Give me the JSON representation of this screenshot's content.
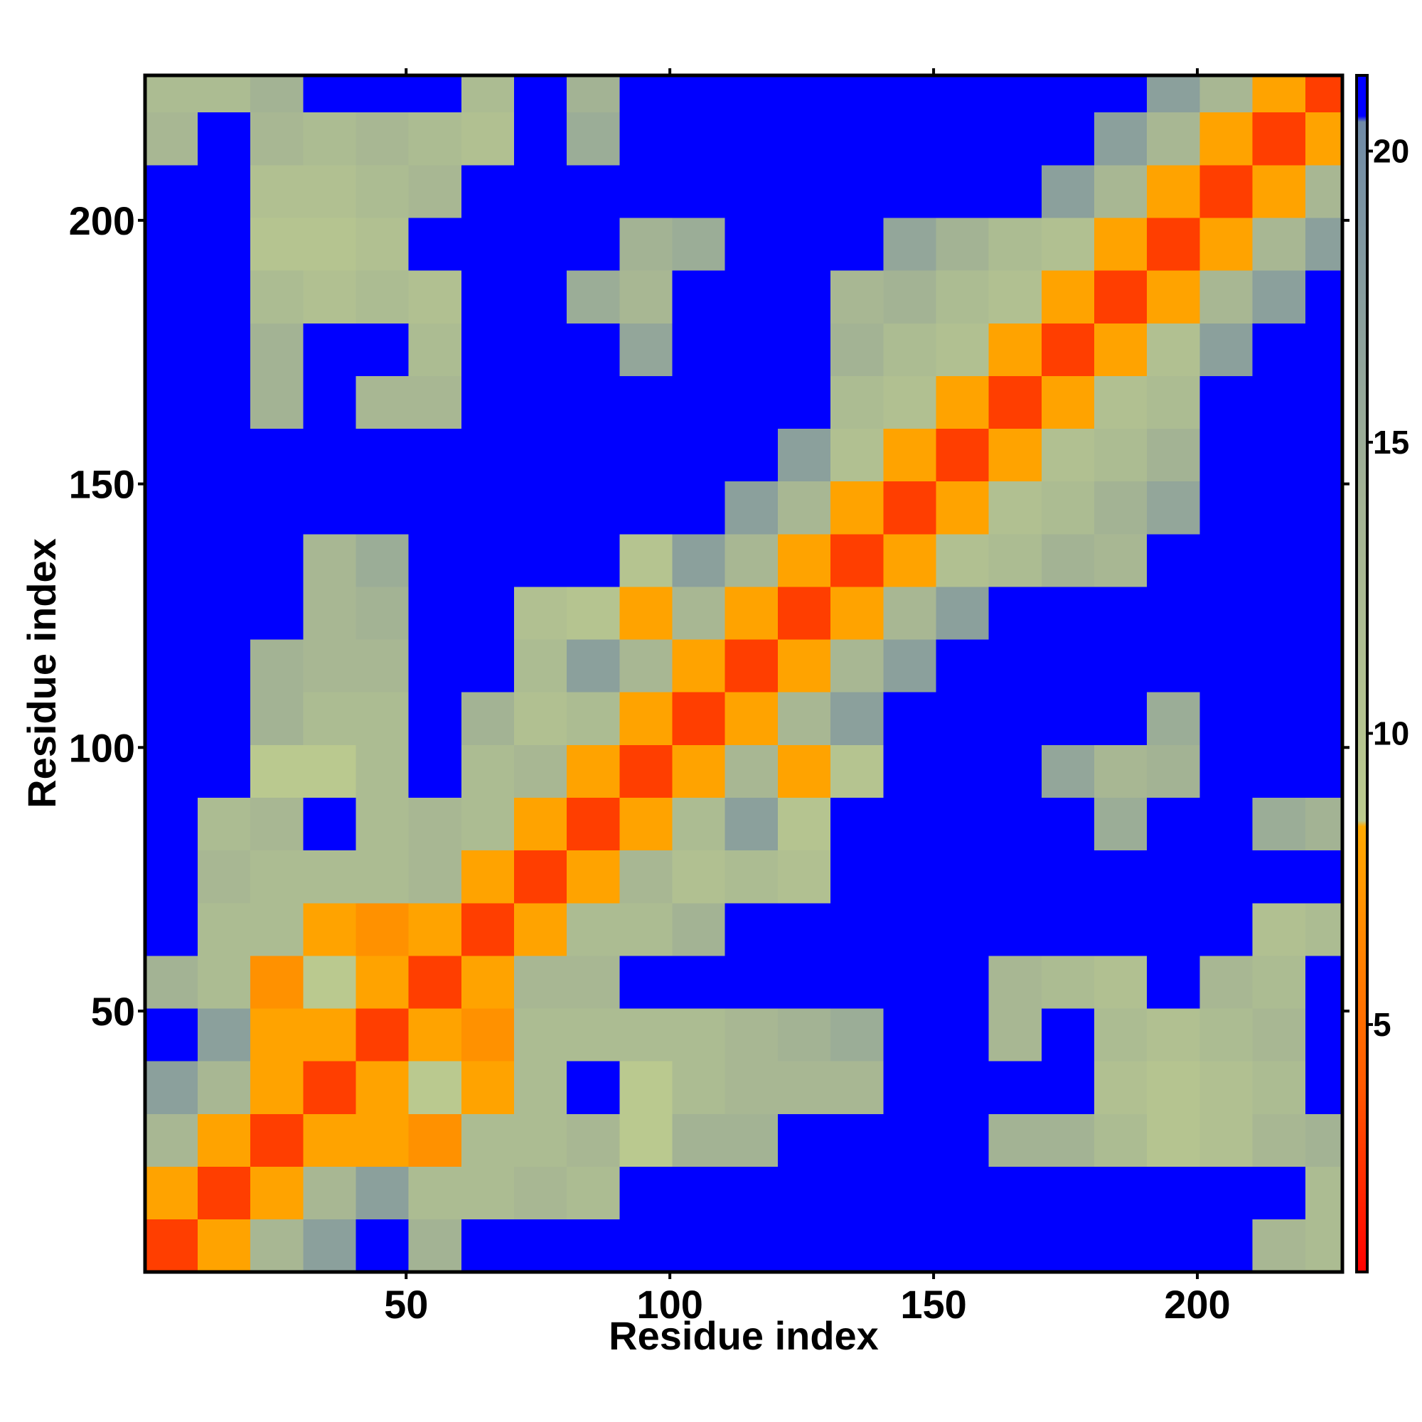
{
  "chart_data": {
    "type": "heatmap",
    "xlabel": "Residue index",
    "ylabel": "Residue index",
    "xlim": [
      0.5,
      227.5
    ],
    "ylim": [
      0.5,
      227.5
    ],
    "xticks": [
      50,
      100,
      150,
      200
    ],
    "yticks": [
      50,
      100,
      150,
      200
    ],
    "xbins": [
      0.5,
      10.5,
      20.5,
      30.5,
      40.5,
      50.5,
      60.5,
      70.5,
      80.5,
      90.5,
      100.5,
      110.5,
      120.5,
      130.5,
      140.5,
      150.5,
      160.5,
      170.5,
      180.5,
      190.5,
      200.5,
      210.5,
      220.5,
      227.5
    ],
    "ybins": [
      0.5,
      10.5,
      20.5,
      30.5,
      40.5,
      50.5,
      60.5,
      70.5,
      80.5,
      90.5,
      100.5,
      110.5,
      120.5,
      130.5,
      140.5,
      150.5,
      160.5,
      170.5,
      180.5,
      190.5,
      200.5,
      210.5,
      220.5,
      227.5
    ],
    "clim": [
      0.75,
      21.3
    ],
    "cticks": [
      5,
      10,
      15,
      20
    ],
    "colorscale": [
      {
        "value": 0.75,
        "color": "#ff0000"
      },
      {
        "value": 4,
        "color": "#ff5a00"
      },
      {
        "value": 8.4,
        "color": "#ffaa00"
      },
      {
        "value": 8.5,
        "color": "#bccb8e"
      },
      {
        "value": 14,
        "color": "#a3b394"
      },
      {
        "value": 20.5,
        "color": "#6f8aa6"
      },
      {
        "value": 20.6,
        "color": "#0000ff"
      },
      {
        "value": 21.3,
        "color": "#0000ff"
      }
    ],
    "values": [
      [
        3,
        8,
        13,
        17,
        21,
        14,
        21,
        21,
        21,
        21,
        21,
        21,
        21,
        21,
        21,
        21,
        21,
        21,
        21,
        21,
        21,
        13,
        12
      ],
      [
        8,
        3,
        8,
        13,
        17,
        12,
        12,
        13,
        12,
        21,
        21,
        21,
        21,
        21,
        21,
        21,
        21,
        21,
        21,
        21,
        21,
        21,
        12
      ],
      [
        13,
        8,
        3,
        8,
        8,
        7,
        12,
        12,
        13,
        9,
        14,
        14,
        21,
        21,
        21,
        21,
        14,
        14,
        12,
        10,
        11,
        13,
        14
      ],
      [
        17,
        13,
        8,
        3,
        8,
        9,
        8,
        12,
        21,
        9,
        12,
        13,
        13,
        13,
        21,
        21,
        21,
        21,
        11,
        10,
        11,
        12,
        21
      ],
      [
        21,
        17,
        8,
        8,
        3,
        8,
        7,
        12,
        12,
        12,
        12,
        13,
        14,
        15,
        21,
        21,
        13,
        21,
        12,
        11,
        12,
        13,
        21
      ],
      [
        14,
        12,
        7,
        9,
        8,
        3,
        8,
        13,
        13,
        21,
        21,
        21,
        21,
        21,
        21,
        21,
        13,
        12,
        11,
        21,
        13,
        12,
        21
      ],
      [
        21,
        12,
        12,
        8,
        7,
        8,
        3,
        8,
        12,
        12,
        14,
        21,
        21,
        21,
        21,
        21,
        21,
        21,
        21,
        21,
        21,
        11,
        12
      ],
      [
        21,
        13,
        12,
        12,
        12,
        13,
        8,
        3,
        8,
        13,
        11,
        12,
        11,
        21,
        21,
        21,
        21,
        21,
        21,
        21,
        21,
        21,
        21
      ],
      [
        21,
        12,
        13,
        21,
        12,
        13,
        12,
        8,
        3,
        8,
        12,
        17,
        10,
        21,
        21,
        21,
        21,
        21,
        15,
        21,
        21,
        15,
        14
      ],
      [
        21,
        21,
        9,
        9,
        12,
        21,
        12,
        13,
        8,
        3,
        8,
        13,
        8,
        10,
        21,
        21,
        21,
        16,
        13,
        14,
        21,
        21,
        21
      ],
      [
        21,
        21,
        14,
        12,
        12,
        21,
        14,
        11,
        12,
        8,
        3,
        8,
        13,
        17,
        21,
        21,
        21,
        21,
        21,
        15,
        21,
        21,
        21
      ],
      [
        21,
        21,
        14,
        13,
        13,
        21,
        21,
        12,
        17,
        13,
        8,
        3,
        8,
        13,
        17,
        21,
        21,
        21,
        21,
        21,
        21,
        21,
        21
      ],
      [
        21,
        21,
        21,
        13,
        14,
        21,
        21,
        11,
        10,
        8,
        13,
        8,
        3,
        8,
        13,
        17,
        21,
        21,
        21,
        21,
        21,
        21,
        21
      ],
      [
        21,
        21,
        21,
        13,
        15,
        21,
        21,
        21,
        21,
        10,
        17,
        13,
        8,
        3,
        8,
        11,
        12,
        14,
        13,
        21,
        21,
        21,
        21
      ],
      [
        21,
        21,
        21,
        21,
        21,
        21,
        21,
        21,
        21,
        21,
        21,
        17,
        13,
        8,
        3,
        8,
        11,
        12,
        14,
        16,
        21,
        21,
        21
      ],
      [
        21,
        21,
        21,
        21,
        21,
        21,
        21,
        21,
        21,
        21,
        21,
        21,
        17,
        11,
        8,
        3,
        8,
        11,
        12,
        14,
        21,
        21,
        21
      ],
      [
        21,
        21,
        14,
        21,
        13,
        13,
        21,
        21,
        21,
        21,
        21,
        21,
        21,
        12,
        11,
        8,
        3,
        8,
        11,
        12,
        21,
        21,
        21
      ],
      [
        21,
        21,
        14,
        21,
        21,
        12,
        21,
        21,
        21,
        16,
        21,
        21,
        21,
        14,
        12,
        11,
        8,
        3,
        8,
        11,
        17,
        21,
        21
      ],
      [
        21,
        21,
        12,
        11,
        12,
        11,
        21,
        21,
        15,
        13,
        21,
        21,
        21,
        13,
        14,
        12,
        11,
        8,
        3,
        8,
        13,
        17,
        21
      ],
      [
        21,
        21,
        10,
        10,
        11,
        21,
        21,
        21,
        21,
        14,
        15,
        21,
        21,
        21,
        16,
        14,
        12,
        11,
        8,
        3,
        8,
        13,
        17
      ],
      [
        21,
        21,
        11,
        11,
        12,
        13,
        21,
        21,
        21,
        21,
        21,
        21,
        21,
        21,
        21,
        21,
        21,
        17,
        13,
        8,
        3,
        8,
        13
      ],
      [
        13,
        21,
        13,
        12,
        13,
        12,
        11,
        21,
        15,
        21,
        21,
        21,
        21,
        21,
        21,
        21,
        21,
        21,
        17,
        13,
        8,
        3,
        8
      ],
      [
        12,
        12,
        14,
        21,
        21,
        21,
        12,
        21,
        14,
        21,
        21,
        21,
        21,
        21,
        21,
        21,
        21,
        21,
        21,
        17,
        13,
        8,
        3
      ]
    ]
  }
}
